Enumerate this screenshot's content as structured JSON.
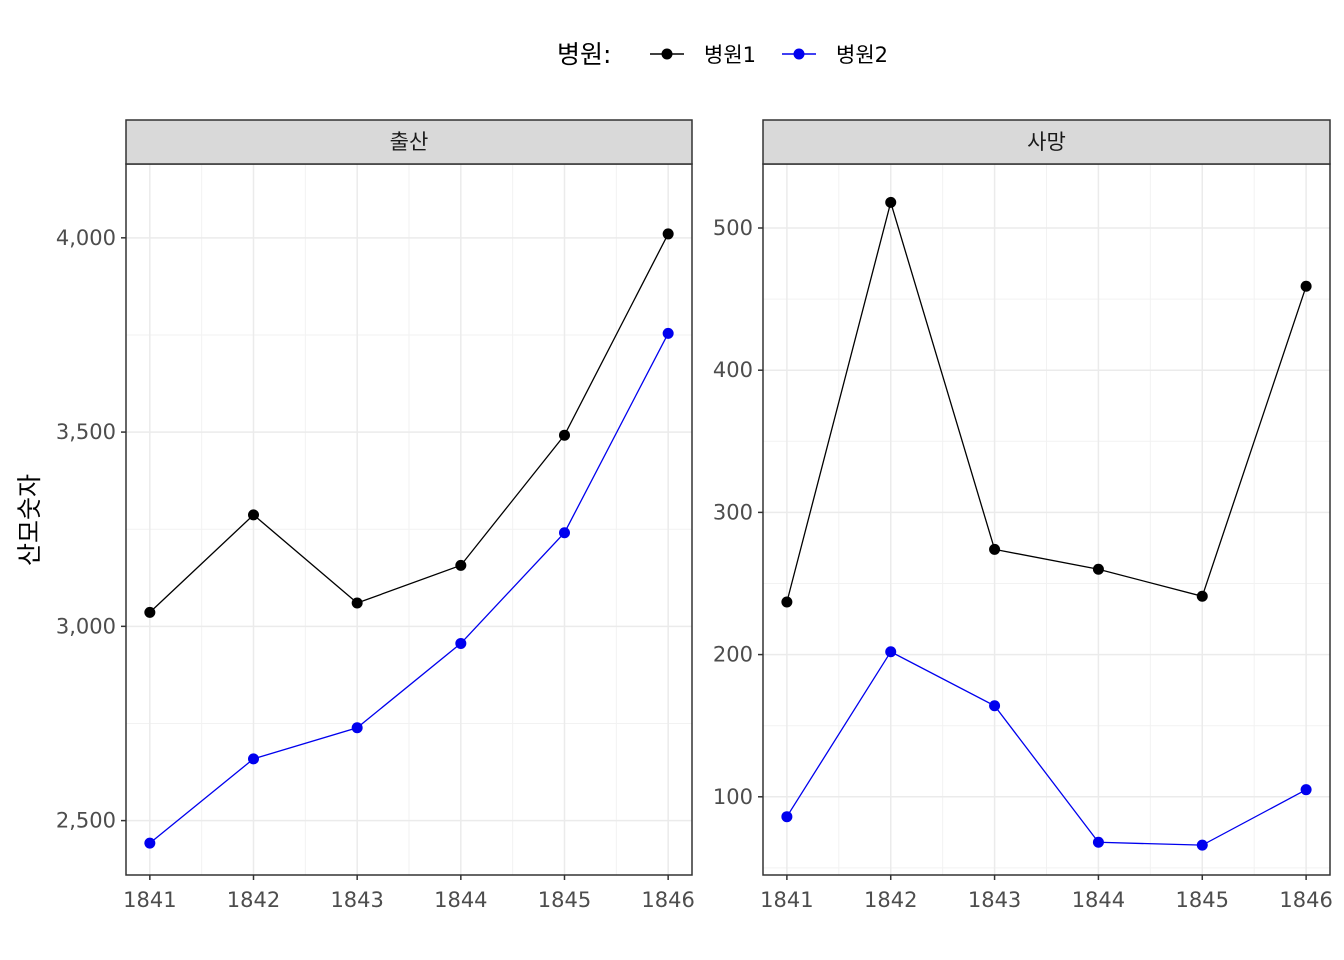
{
  "chart_data": {
    "type": "line",
    "ylabel": "산모숫자",
    "xlabel": "",
    "legend": {
      "title": "병원:",
      "position": "top",
      "entries": [
        "병원1",
        "병원2"
      ]
    },
    "colors": {
      "병원1": "#000000",
      "병원2": "#0000ee"
    },
    "grid": true,
    "x": [
      1841,
      1842,
      1843,
      1844,
      1845,
      1846
    ],
    "x_tick_labels": [
      "1841",
      "1842",
      "1843",
      "1844",
      "1845",
      "1846"
    ],
    "panels": [
      {
        "strip": "출산",
        "ylim": [
          2360,
          4190
        ],
        "y_ticks": [
          2500,
          3000,
          3500,
          4000
        ],
        "y_tick_labels": [
          "2,500",
          "3,000",
          "3,500",
          "4,000"
        ],
        "series": [
          {
            "name": "병원1",
            "values": [
              3036,
              3287,
              3060,
              3157,
              3492,
              4010
            ]
          },
          {
            "name": "병원2",
            "values": [
              2442,
              2659,
              2739,
              2956,
              3241,
              3754
            ]
          }
        ]
      },
      {
        "strip": "사망",
        "ylim": [
          45,
          545
        ],
        "y_ticks": [
          100,
          200,
          300,
          400,
          500
        ],
        "y_tick_labels": [
          "100",
          "200",
          "300",
          "400",
          "500"
        ],
        "series": [
          {
            "name": "병원1",
            "values": [
              237,
              518,
              274,
              260,
              241,
              459
            ]
          },
          {
            "name": "병원2",
            "values": [
              86,
              202,
              164,
              68,
              66,
              105
            ]
          }
        ]
      }
    ]
  }
}
